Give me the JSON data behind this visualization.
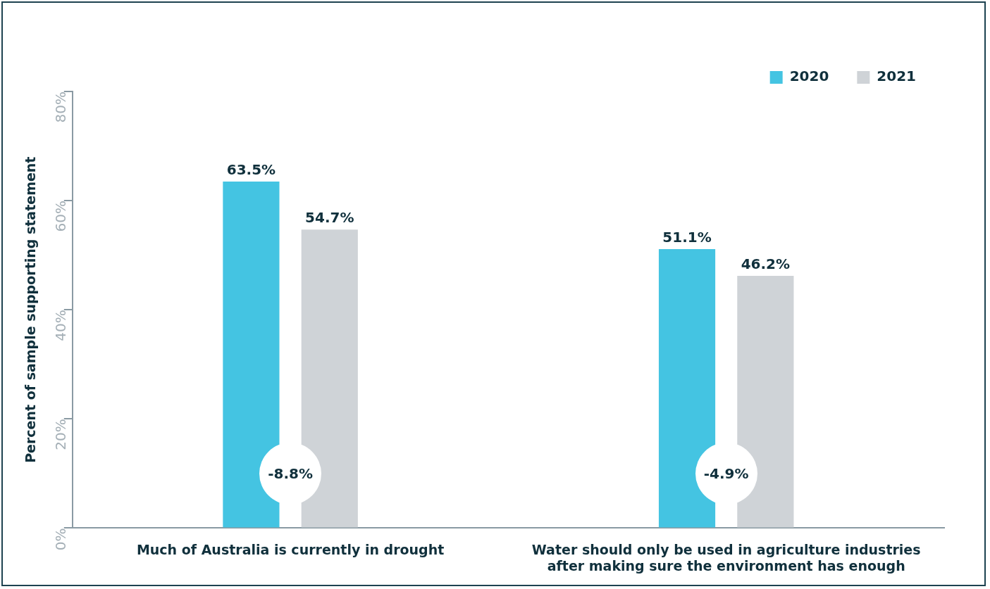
{
  "chart_data": {
    "type": "bar",
    "ylabel": "Percent of sample supporting statement",
    "categories": [
      "Much of Australia is currently in drought",
      "Water should only be used in agriculture industries after making sure the environment has enough"
    ],
    "series": [
      {
        "name": "2020",
        "color": "#44c4e2",
        "values": [
          63.5,
          51.1
        ],
        "value_labels": [
          "63.5%",
          "51.1%"
        ]
      },
      {
        "name": "2021",
        "color": "#cfd3d7",
        "values": [
          54.7,
          46.2
        ],
        "value_labels": [
          "54.7%",
          "46.2%"
        ]
      }
    ],
    "ylim": [
      0,
      80
    ],
    "yticks": [
      {
        "value": 0,
        "label": "0%"
      },
      {
        "value": 20,
        "label": "20%"
      },
      {
        "value": 40,
        "label": "40%"
      },
      {
        "value": 60,
        "label": "60%"
      },
      {
        "value": 80,
        "label": "80%"
      }
    ],
    "annotations": [
      "-8.8%",
      "-4.9%"
    ],
    "legend": "top right",
    "grid": false
  }
}
